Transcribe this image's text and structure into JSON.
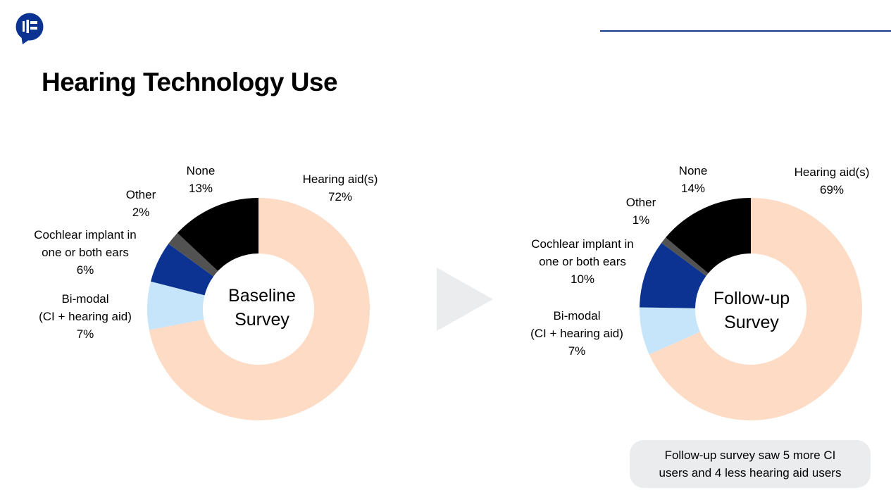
{
  "header": {
    "logo_icon": "speech-bubble-logo-icon",
    "title": "Hearing Technology Use",
    "accent_color": "#1a3a8a"
  },
  "charts": {
    "baseline": {
      "center_line1": "Baseline",
      "center_line2": "Survey",
      "labels": {
        "hearing_aid": {
          "name": "Hearing aid(s)",
          "pct": "72%"
        },
        "none": {
          "name": "None",
          "pct": "13%"
        },
        "other": {
          "name": "Other",
          "pct": "2%"
        },
        "ci_line1": "Cochlear implant in",
        "ci_line2": "one or both ears",
        "ci_pct": "6%",
        "bimodal_line1": "Bi-modal",
        "bimodal_line2": "(CI + hearing aid)",
        "bimodal_pct": "7%"
      }
    },
    "followup": {
      "center_line1": "Follow-up",
      "center_line2": "Survey",
      "labels": {
        "hearing_aid": {
          "name": "Hearing aid(s)",
          "pct": "69%"
        },
        "none": {
          "name": "None",
          "pct": "14%"
        },
        "other": {
          "name": "Other",
          "pct": "1%"
        },
        "ci_line1": "Cochlear implant in",
        "ci_line2": "one or both ears",
        "ci_pct": "10%",
        "bimodal_line1": "Bi-modal",
        "bimodal_line2": "(CI + hearing aid)",
        "bimodal_pct": "7%"
      }
    }
  },
  "arrow_icon": "play-arrow-icon",
  "note": {
    "line1": "Follow-up survey saw 5 more CI",
    "line2": "users and 4 less hearing aid users"
  },
  "chart_data": [
    {
      "type": "pie",
      "variant": "donut",
      "title": "Baseline Survey",
      "categories": [
        "Hearing aid(s)",
        "Bi-modal (CI + hearing aid)",
        "Cochlear implant in one or both ears",
        "Other",
        "None"
      ],
      "values": [
        72,
        7,
        6,
        2,
        13
      ],
      "unit": "%",
      "colors": [
        "#fddbc4",
        "#c6e5fb",
        "#0c3391",
        "#525252",
        "#000000"
      ],
      "start_angle": "12 o'clock",
      "direction": "clockwise"
    },
    {
      "type": "pie",
      "variant": "donut",
      "title": "Follow-up Survey",
      "categories": [
        "Hearing aid(s)",
        "Bi-modal (CI + hearing aid)",
        "Cochlear implant in one or both ears",
        "Other",
        "None"
      ],
      "values": [
        69,
        7,
        10,
        1,
        14
      ],
      "unit": "%",
      "colors": [
        "#fddbc4",
        "#c6e5fb",
        "#0c3391",
        "#525252",
        "#000000"
      ],
      "start_angle": "12 o'clock",
      "direction": "clockwise"
    }
  ]
}
